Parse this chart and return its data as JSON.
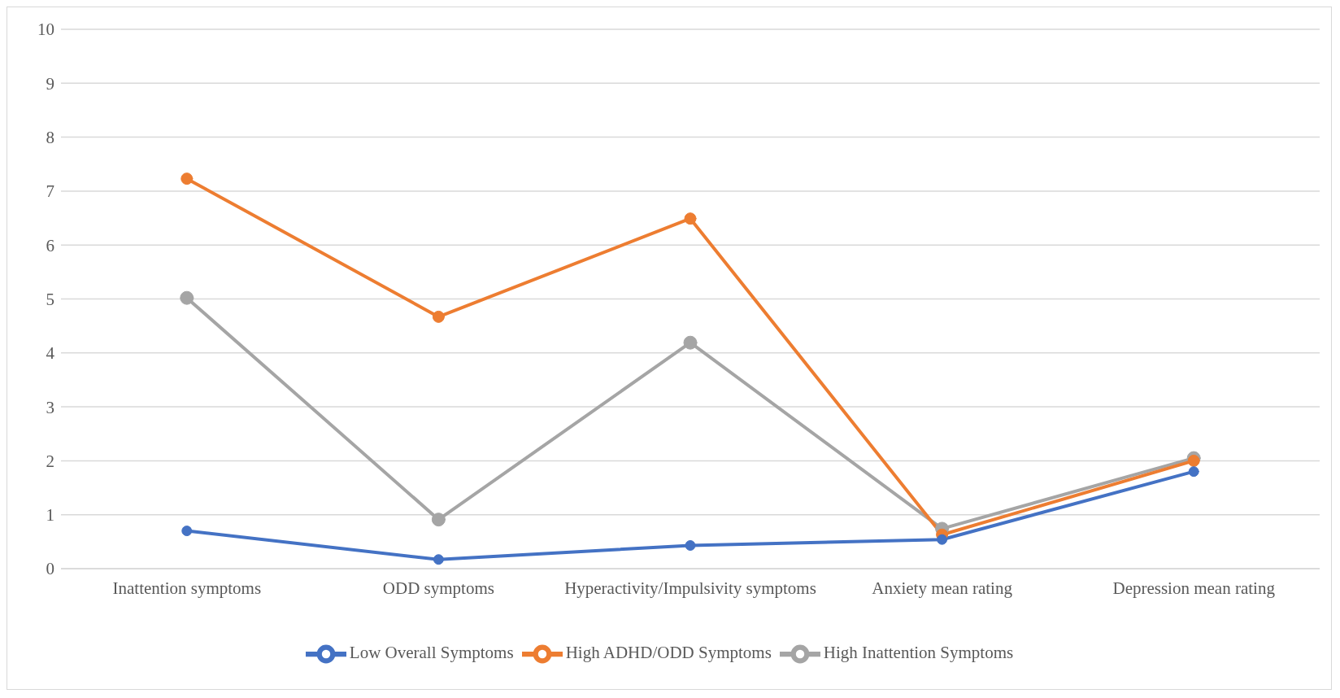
{
  "chart_data": {
    "type": "line",
    "categories": [
      "Inattention symptoms",
      "ODD symptoms",
      "Hyperactivity/Impulsivity symptoms",
      "Anxiety mean rating",
      "Depression mean rating"
    ],
    "series": [
      {
        "name": "Low Overall Symptoms",
        "color": "#4472c4",
        "values": [
          0.7,
          0.17,
          0.43,
          0.54,
          1.8
        ]
      },
      {
        "name": "High ADHD/ODD Symptoms",
        "color": "#ed7d31",
        "values": [
          7.23,
          4.67,
          6.49,
          0.63,
          2.0
        ]
      },
      {
        "name": "High Inattention Symptoms",
        "color": "#a5a5a5",
        "values": [
          5.02,
          0.91,
          4.19,
          0.74,
          2.05
        ]
      }
    ],
    "ylim": [
      0,
      10
    ],
    "yticks": [
      0,
      1,
      2,
      3,
      4,
      5,
      6,
      7,
      8,
      9,
      10
    ],
    "grid": "y",
    "legend": "bottom",
    "marker": "circle",
    "line_style": "solid"
  }
}
